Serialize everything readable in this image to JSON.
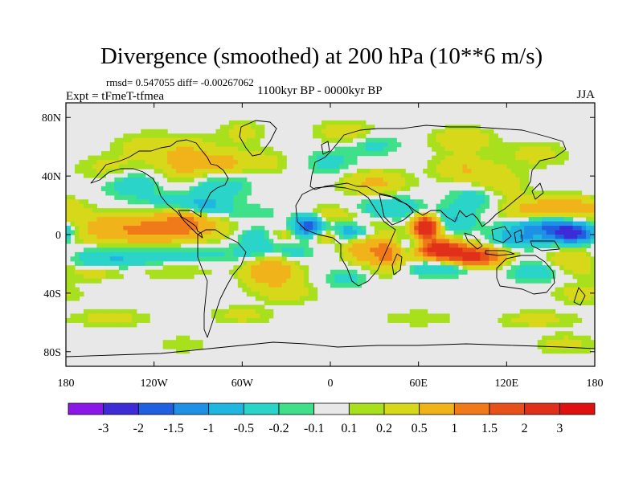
{
  "header": {
    "title": "Divergence (smoothed) at 200 hPa (10**6 m/s)",
    "stats": "rmsd= 0.547055 diff= -0.00267062",
    "experiment": "Expt = tFmeT-tfmea",
    "period": "1100kyr BP - 0000kyr BP",
    "season": "JJA"
  },
  "chart_data": {
    "type": "heatmap",
    "title": "Divergence (smoothed) at 200 hPa (10**6 m/s)",
    "subtitle": "1100kyr BP - 0000kyr BP",
    "projection": "cylindrical-equidistant",
    "xlim": [
      -180,
      180
    ],
    "ylim": [
      -90,
      90
    ],
    "x_ticks": [
      {
        "value": -180,
        "label": "180"
      },
      {
        "value": -120,
        "label": "120W"
      },
      {
        "value": -60,
        "label": "60W"
      },
      {
        "value": 0,
        "label": "0"
      },
      {
        "value": 60,
        "label": "60E"
      },
      {
        "value": 120,
        "label": "120E"
      },
      {
        "value": 180,
        "label": "180"
      }
    ],
    "y_ticks": [
      {
        "value": 80,
        "label": "80N"
      },
      {
        "value": 40,
        "label": "40N"
      },
      {
        "value": 0,
        "label": "0"
      },
      {
        "value": -40,
        "label": "40S"
      },
      {
        "value": -80,
        "label": "80S"
      }
    ],
    "levels": [
      "-3",
      "-2",
      "-1.5",
      "-1",
      "-0.5",
      "-0.2",
      "-0.1",
      "0.1",
      "0.2",
      "0.5",
      "1",
      "1.5",
      "2",
      "3"
    ],
    "colors": [
      "#8a16e8",
      "#3c2bd6",
      "#1f5fe0",
      "#1e90e6",
      "#1fb6e0",
      "#2ad4c8",
      "#3fe08a",
      "#e8e8e8",
      "#a8e01e",
      "#d8d81a",
      "#f0b41a",
      "#f07a1a",
      "#e8501a",
      "#e0301a",
      "#e01010"
    ],
    "background_color": "#e8e8e8",
    "features": [
      {
        "lon": -140,
        "lat": 0,
        "value": 0.5,
        "sx": 30,
        "sy": 7
      },
      {
        "lon": -155,
        "lat": 8,
        "value": 0.3,
        "sx": 18,
        "sy": 5
      },
      {
        "lon": -120,
        "lat": -15,
        "value": -0.5,
        "sx": 40,
        "sy": 6
      },
      {
        "lon": -150,
        "lat": -20,
        "value": -0.4,
        "sx": 20,
        "sy": 5
      },
      {
        "lon": -115,
        "lat": -22,
        "value": 0.4,
        "sx": 30,
        "sy": 5
      },
      {
        "lon": -160,
        "lat": -25,
        "value": 0.4,
        "sx": 14,
        "sy": 4
      },
      {
        "lon": -110,
        "lat": 5,
        "value": 0.9,
        "sx": 25,
        "sy": 7
      },
      {
        "lon": -95,
        "lat": 10,
        "value": 0.6,
        "sx": 12,
        "sy": 5
      },
      {
        "lon": -85,
        "lat": 18,
        "value": -0.6,
        "sx": 10,
        "sy": 6
      },
      {
        "lon": -110,
        "lat": 22,
        "value": -0.3,
        "sx": 14,
        "sy": 4
      },
      {
        "lon": -95,
        "lat": 48,
        "value": 0.8,
        "sx": 14,
        "sy": 10
      },
      {
        "lon": -70,
        "lat": 48,
        "value": 0.6,
        "sx": 8,
        "sy": 6
      },
      {
        "lon": -80,
        "lat": 35,
        "value": -0.5,
        "sx": 16,
        "sy": 8
      },
      {
        "lon": -135,
        "lat": 35,
        "value": -0.4,
        "sx": 14,
        "sy": 7
      },
      {
        "lon": -150,
        "lat": 45,
        "value": 0.3,
        "sx": 16,
        "sy": 6
      },
      {
        "lon": -125,
        "lat": 60,
        "value": 0.3,
        "sx": 16,
        "sy": 7
      },
      {
        "lon": -60,
        "lat": 70,
        "value": 0.3,
        "sx": 10,
        "sy": 6
      },
      {
        "lon": -45,
        "lat": 50,
        "value": 0.3,
        "sx": 12,
        "sy": 6
      },
      {
        "lon": -55,
        "lat": 15,
        "value": -0.2,
        "sx": 15,
        "sy": 4
      },
      {
        "lon": -50,
        "lat": -10,
        "value": -0.3,
        "sx": 10,
        "sy": 5
      },
      {
        "lon": -50,
        "lat": 0,
        "value": -0.4,
        "sx": 10,
        "sy": 4
      },
      {
        "lon": -30,
        "lat": 0,
        "value": 0.4,
        "sx": 10,
        "sy": 4
      },
      {
        "lon": -15,
        "lat": 5,
        "value": -2.0,
        "sx": 7,
        "sy": 5
      },
      {
        "lon": -5,
        "lat": 0,
        "value": 0.8,
        "sx": 9,
        "sy": 4
      },
      {
        "lon": 12,
        "lat": 3,
        "value": -0.9,
        "sx": 10,
        "sy": 5
      },
      {
        "lon": 20,
        "lat": 8,
        "value": 0.4,
        "sx": 14,
        "sy": 4
      },
      {
        "lon": 0,
        "lat": 14,
        "value": 0.4,
        "sx": 12,
        "sy": 4
      },
      {
        "lon": -40,
        "lat": -25,
        "value": 1.0,
        "sx": 12,
        "sy": 7
      },
      {
        "lon": -25,
        "lat": -12,
        "value": -0.3,
        "sx": 10,
        "sy": 5
      },
      {
        "lon": -30,
        "lat": -40,
        "value": 0.3,
        "sx": 15,
        "sy": 5
      },
      {
        "lon": 10,
        "lat": -30,
        "value": -0.3,
        "sx": 10,
        "sy": 5
      },
      {
        "lon": 20,
        "lat": -10,
        "value": 0.8,
        "sx": 8,
        "sy": 6
      },
      {
        "lon": 38,
        "lat": -12,
        "value": 1.2,
        "sx": 8,
        "sy": 8
      },
      {
        "lon": 40,
        "lat": 18,
        "value": -0.5,
        "sx": 15,
        "sy": 6
      },
      {
        "lon": 30,
        "lat": 35,
        "value": 0.6,
        "sx": 15,
        "sy": 6
      },
      {
        "lon": 0,
        "lat": 50,
        "value": -0.3,
        "sx": 12,
        "sy": 6
      },
      {
        "lon": 30,
        "lat": 62,
        "value": -0.3,
        "sx": 12,
        "sy": 5
      },
      {
        "lon": 10,
        "lat": 70,
        "value": 0.4,
        "sx": 14,
        "sy": 5
      },
      {
        "lon": 65,
        "lat": 5,
        "value": 3.0,
        "sx": 6,
        "sy": 5
      },
      {
        "lon": 72,
        "lat": -8,
        "value": 1.8,
        "sx": 11,
        "sy": 4
      },
      {
        "lon": 85,
        "lat": -13,
        "value": 1.8,
        "sx": 18,
        "sy": 4
      },
      {
        "lon": 100,
        "lat": -17,
        "value": 1.3,
        "sx": 12,
        "sy": 4
      },
      {
        "lon": 55,
        "lat": -8,
        "value": -0.8,
        "sx": 9,
        "sy": 4
      },
      {
        "lon": 75,
        "lat": -22,
        "value": -0.6,
        "sx": 15,
        "sy": 4
      },
      {
        "lon": 85,
        "lat": 10,
        "value": -0.5,
        "sx": 10,
        "sy": 6
      },
      {
        "lon": 100,
        "lat": 25,
        "value": -0.4,
        "sx": 12,
        "sy": 6
      },
      {
        "lon": 115,
        "lat": 35,
        "value": 0.4,
        "sx": 12,
        "sy": 7
      },
      {
        "lon": 90,
        "lat": 45,
        "value": 0.5,
        "sx": 14,
        "sy": 6
      },
      {
        "lon": 90,
        "lat": 65,
        "value": 0.4,
        "sx": 15,
        "sy": 6
      },
      {
        "lon": 140,
        "lat": 55,
        "value": 0.3,
        "sx": 15,
        "sy": 6
      },
      {
        "lon": 150,
        "lat": 5,
        "value": -1.4,
        "sx": 18,
        "sy": 4
      },
      {
        "lon": 165,
        "lat": 0,
        "value": -2.2,
        "sx": 10,
        "sy": 4
      },
      {
        "lon": 130,
        "lat": -3,
        "value": -0.9,
        "sx": 12,
        "sy": 4
      },
      {
        "lon": 140,
        "lat": 18,
        "value": 0.6,
        "sx": 18,
        "sy": 6
      },
      {
        "lon": 170,
        "lat": 18,
        "value": 0.6,
        "sx": 14,
        "sy": 5
      },
      {
        "lon": 140,
        "lat": -25,
        "value": -0.4,
        "sx": 14,
        "sy": 5
      },
      {
        "lon": 165,
        "lat": -18,
        "value": 0.6,
        "sx": 12,
        "sy": 6
      },
      {
        "lon": 170,
        "lat": -40,
        "value": 0.3,
        "sx": 14,
        "sy": 5
      },
      {
        "lon": -150,
        "lat": -57,
        "value": 0.3,
        "sx": 18,
        "sy": 4
      },
      {
        "lon": -60,
        "lat": -55,
        "value": 0.3,
        "sx": 15,
        "sy": 4
      },
      {
        "lon": 60,
        "lat": -57,
        "value": 0.2,
        "sx": 18,
        "sy": 4
      },
      {
        "lon": 140,
        "lat": -58,
        "value": 0.3,
        "sx": 18,
        "sy": 4
      },
      {
        "lon": 160,
        "lat": -75,
        "value": 0.3,
        "sx": 14,
        "sy": 5
      },
      {
        "lon": -100,
        "lat": -75,
        "value": 0.2,
        "sx": 12,
        "sy": 4
      }
    ]
  }
}
